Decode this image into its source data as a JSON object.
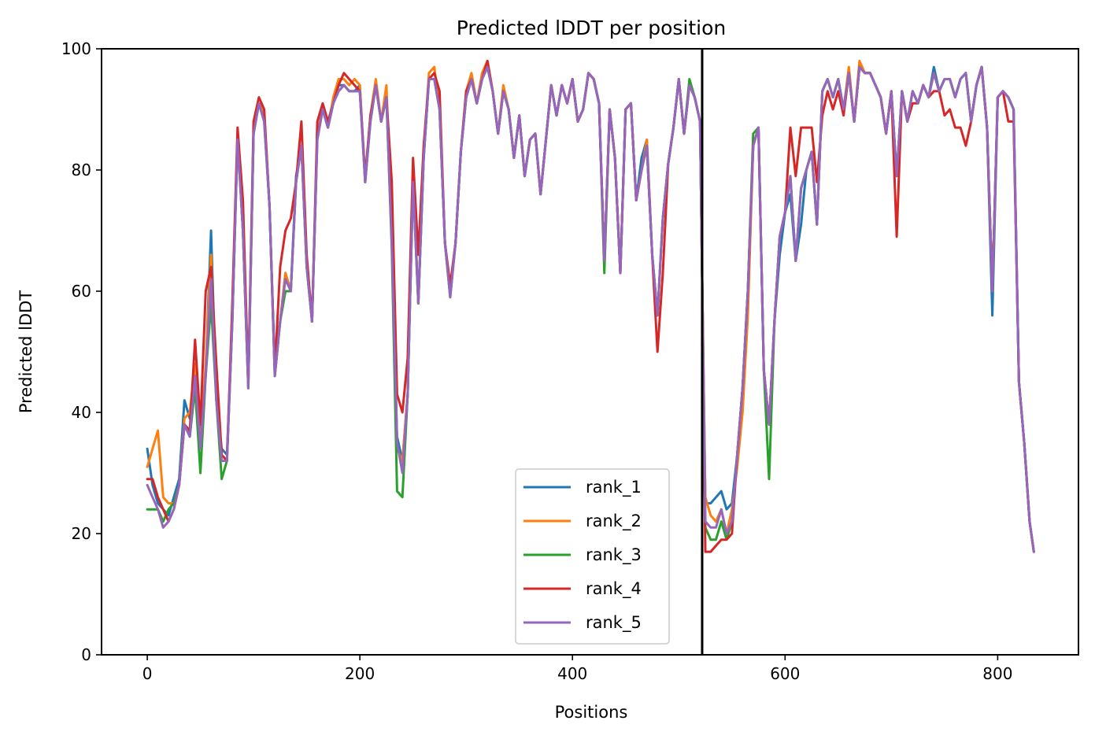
{
  "chart_data": {
    "type": "line",
    "title": "Predicted lDDT per position",
    "xlabel": "Positions",
    "ylabel": "Predicted lDDT",
    "xlim": [
      -43,
      876
    ],
    "ylim": [
      0,
      100
    ],
    "xticks": [
      0,
      200,
      400,
      600,
      800
    ],
    "yticks": [
      0,
      20,
      40,
      60,
      80,
      100
    ],
    "xtick_labels": [
      "0",
      "200",
      "400",
      "600",
      "800"
    ],
    "ytick_labels": [
      "0",
      "20",
      "40",
      "60",
      "80",
      "100"
    ],
    "grid": false,
    "legend_position": "lower center",
    "vline_x": 522,
    "x": [
      0,
      5,
      10,
      15,
      20,
      25,
      30,
      35,
      40,
      45,
      50,
      55,
      60,
      65,
      70,
      75,
      80,
      85,
      90,
      95,
      100,
      105,
      110,
      115,
      120,
      125,
      130,
      135,
      140,
      145,
      150,
      155,
      160,
      165,
      170,
      175,
      180,
      185,
      190,
      195,
      200,
      205,
      210,
      215,
      220,
      225,
      230,
      235,
      240,
      245,
      250,
      255,
      260,
      265,
      270,
      275,
      280,
      285,
      290,
      295,
      300,
      305,
      310,
      315,
      320,
      325,
      330,
      335,
      340,
      345,
      350,
      355,
      360,
      365,
      370,
      375,
      380,
      385,
      390,
      395,
      400,
      405,
      410,
      415,
      420,
      425,
      430,
      435,
      440,
      445,
      450,
      455,
      460,
      465,
      470,
      475,
      480,
      485,
      490,
      495,
      500,
      505,
      510,
      515,
      520,
      522,
      525,
      530,
      535,
      540,
      545,
      550,
      555,
      560,
      565,
      570,
      575,
      580,
      585,
      590,
      595,
      600,
      605,
      610,
      615,
      620,
      625,
      630,
      635,
      640,
      645,
      650,
      655,
      660,
      665,
      670,
      675,
      680,
      685,
      690,
      695,
      700,
      705,
      710,
      715,
      720,
      725,
      730,
      735,
      740,
      745,
      750,
      755,
      760,
      765,
      770,
      775,
      780,
      785,
      790,
      795,
      800,
      805,
      810,
      815,
      820,
      825,
      830,
      834
    ],
    "base": [
      28,
      26,
      24,
      21,
      22,
      24,
      28,
      38,
      36,
      46,
      34,
      46,
      62,
      42,
      32,
      32,
      55,
      85,
      70,
      44,
      86,
      91,
      88,
      74,
      46,
      55,
      62,
      60,
      78,
      84,
      64,
      55,
      85,
      90,
      87,
      91,
      93,
      94,
      93,
      93,
      93,
      78,
      88,
      94,
      88,
      92,
      68,
      35,
      30,
      43,
      78,
      58,
      82,
      95,
      95,
      90,
      68,
      59,
      68,
      83,
      92,
      95,
      91,
      95,
      97,
      93,
      86,
      93,
      90,
      82,
      89,
      79,
      85,
      86,
      76,
      85,
      94,
      89,
      94,
      91,
      95,
      88,
      90,
      96,
      95,
      91,
      65,
      90,
      82,
      63,
      90,
      91,
      75,
      80,
      84,
      66,
      56,
      72,
      81,
      87,
      95,
      86,
      94,
      92,
      88,
      62,
      22,
      21,
      21,
      24,
      20,
      22,
      33,
      44,
      60,
      84,
      87,
      47,
      38,
      55,
      69,
      73,
      79,
      65,
      77,
      80,
      83,
      71,
      93,
      95,
      92,
      95,
      90,
      96,
      88,
      97,
      96,
      96,
      94,
      92,
      86,
      93,
      79,
      93,
      88,
      93,
      91,
      94,
      92,
      96,
      93,
      95,
      95,
      92,
      95,
      96,
      88,
      94,
      97,
      87,
      60,
      92,
      93,
      92,
      90,
      45,
      35,
      22,
      17
    ],
    "series": [
      {
        "name": "rank_1",
        "color": "#1f77b4",
        "offsets": [
          6,
          2,
          1,
          3,
          1,
          2,
          1,
          4,
          3,
          0,
          2,
          1,
          8,
          0,
          2,
          1,
          0,
          1,
          0,
          1,
          0,
          0,
          1,
          0,
          1,
          0,
          1,
          0,
          1,
          0,
          1,
          0,
          1,
          0,
          0,
          0,
          1,
          0,
          0,
          0,
          1,
          0,
          1,
          0,
          0,
          0,
          1,
          1,
          2,
          0,
          1,
          0,
          0,
          0,
          0,
          0,
          0,
          1,
          0,
          0,
          0,
          0,
          0,
          0,
          0,
          0,
          0,
          0,
          0,
          0,
          0,
          0,
          0,
          0,
          0,
          0,
          0,
          0,
          0,
          0,
          0,
          0,
          0,
          0,
          0,
          0,
          0,
          0,
          0,
          0,
          0,
          0,
          0,
          2,
          1,
          0,
          0,
          0,
          0,
          0,
          0,
          0,
          0,
          0,
          0,
          0,
          3,
          4,
          5,
          3,
          4,
          3,
          0,
          0,
          0,
          0,
          0,
          0,
          0,
          0,
          -3,
          0,
          -3,
          0,
          -6,
          0,
          0,
          0,
          0,
          0,
          0,
          0,
          0,
          0,
          0,
          0,
          0,
          0,
          0,
          0,
          0,
          0,
          0,
          0,
          0,
          0,
          0,
          0,
          0,
          1,
          0,
          0,
          0,
          0,
          0,
          0,
          0,
          0,
          0,
          0,
          -4,
          0,
          0,
          0,
          0,
          0,
          0,
          0,
          0
        ]
      },
      {
        "name": "rank_2",
        "color": "#ff7f0e",
        "offsets": [
          3,
          8,
          13,
          5,
          3,
          1,
          0,
          1,
          4,
          2,
          0,
          2,
          4,
          0,
          1,
          0,
          0,
          1,
          0,
          0,
          0,
          0,
          1,
          0,
          0,
          0,
          1,
          0,
          0,
          0,
          0,
          0,
          1,
          0,
          0,
          1,
          2,
          1,
          1,
          2,
          1,
          0,
          1,
          1,
          0,
          2,
          1,
          -1,
          2,
          0,
          2,
          0,
          1,
          1,
          2,
          0,
          0,
          1,
          0,
          0,
          1,
          1,
          0,
          1,
          1,
          0,
          0,
          1,
          0,
          0,
          0,
          0,
          0,
          0,
          0,
          0,
          0,
          0,
          0,
          0,
          0,
          0,
          0,
          0,
          0,
          0,
          0,
          0,
          0,
          0,
          0,
          0,
          0,
          0,
          1,
          0,
          0,
          0,
          0,
          0,
          0,
          0,
          0,
          0,
          0,
          0,
          4,
          2,
          1,
          0,
          0,
          2,
          -2,
          -4,
          -4,
          0,
          0,
          0,
          0,
          0,
          0,
          0,
          0,
          0,
          0,
          0,
          0,
          0,
          0,
          0,
          0,
          0,
          0,
          1,
          0,
          1,
          0,
          0,
          0,
          0,
          0,
          0,
          0,
          0,
          0,
          0,
          0,
          0,
          0,
          0,
          0,
          0,
          0,
          0,
          0,
          0,
          0,
          0,
          0,
          0,
          0,
          0,
          0,
          0,
          0,
          0,
          0,
          0,
          0
        ]
      },
      {
        "name": "rank_3",
        "color": "#2ca02c",
        "offsets": [
          -4,
          -2,
          0,
          1,
          2,
          1,
          0,
          0,
          0,
          -2,
          -4,
          0,
          -4,
          0,
          -3,
          0,
          0,
          0,
          0,
          0,
          0,
          0,
          0,
          0,
          0,
          0,
          -2,
          0,
          0,
          0,
          0,
          0,
          0,
          0,
          0,
          0,
          0,
          0,
          0,
          0,
          0,
          0,
          0,
          0,
          0,
          0,
          -1,
          -8,
          -4,
          0,
          0,
          0,
          0,
          0,
          0,
          0,
          0,
          0,
          0,
          0,
          0,
          0,
          0,
          0,
          0,
          0,
          0,
          0,
          0,
          0,
          0,
          0,
          0,
          0,
          0,
          0,
          0,
          0,
          0,
          0,
          0,
          0,
          0,
          0,
          0,
          0,
          -2,
          0,
          0,
          0,
          0,
          0,
          0,
          0,
          0,
          0,
          0,
          0,
          0,
          0,
          0,
          0,
          1,
          0,
          0,
          0,
          -1,
          -2,
          -2,
          -2,
          -1,
          0,
          0,
          0,
          0,
          2,
          0,
          0,
          -9,
          0,
          0,
          0,
          0,
          0,
          0,
          0,
          0,
          0,
          0,
          0,
          0,
          0,
          0,
          0,
          0,
          0,
          0,
          0,
          0,
          0,
          0,
          0,
          0,
          0,
          0,
          0,
          0,
          0,
          0,
          0,
          0,
          0,
          0,
          0,
          0,
          0,
          0,
          0,
          0,
          0,
          0,
          0,
          0,
          0,
          0
        ]
      },
      {
        "name": "rank_4",
        "color": "#d62728",
        "offsets": [
          1,
          3,
          2,
          3,
          0,
          0,
          0,
          0,
          1,
          6,
          4,
          14,
          2,
          6,
          1,
          0,
          3,
          2,
          5,
          1,
          2,
          1,
          2,
          0,
          1,
          9,
          8,
          12,
          0,
          4,
          2,
          0,
          3,
          1,
          1,
          0,
          1,
          2,
          2,
          1,
          0,
          1,
          1,
          0,
          0,
          0,
          10,
          8,
          10,
          6,
          4,
          8,
          2,
          0,
          1,
          3,
          0,
          2,
          0,
          0,
          1,
          0,
          0,
          0,
          1,
          0,
          0,
          0,
          0,
          0,
          0,
          0,
          0,
          0,
          0,
          0,
          0,
          0,
          0,
          0,
          0,
          0,
          0,
          0,
          0,
          0,
          0,
          0,
          0,
          0,
          0,
          0,
          0,
          0,
          0,
          0,
          -6,
          -9,
          0,
          0,
          0,
          0,
          0,
          0,
          0,
          0,
          -5,
          -4,
          -3,
          -5,
          -1,
          -2,
          0,
          0,
          0,
          0,
          0,
          0,
          0,
          0,
          0,
          0,
          8,
          14,
          10,
          7,
          4,
          7,
          -4,
          -2,
          -2,
          -2,
          -1,
          0,
          0,
          0,
          0,
          0,
          0,
          0,
          0,
          0,
          -10,
          0,
          0,
          -2,
          0,
          0,
          0,
          -3,
          0,
          -6,
          -5,
          -5,
          -8,
          -12,
          0,
          0,
          0,
          0,
          0,
          0,
          0,
          -4,
          -2
        ]
      },
      {
        "name": "rank_5",
        "color": "#9467bd",
        "offsets": [
          0,
          0,
          0,
          0,
          0,
          0,
          0,
          0,
          0,
          0,
          0,
          0,
          0,
          0,
          0,
          0,
          0,
          0,
          0,
          0,
          0,
          0,
          0,
          0,
          0,
          0,
          0,
          0,
          0,
          0,
          0,
          0,
          0,
          0,
          0,
          0,
          0,
          0,
          0,
          0,
          0,
          0,
          0,
          0,
          0,
          0,
          0,
          0,
          0,
          0,
          0,
          0,
          0,
          0,
          0,
          0,
          0,
          0,
          0,
          0,
          0,
          0,
          0,
          0,
          0,
          0,
          0,
          0,
          0,
          0,
          0,
          0,
          0,
          0,
          0,
          0,
          0,
          0,
          0,
          0,
          0,
          0,
          0,
          0,
          0,
          0,
          0,
          0,
          0,
          0,
          0,
          0,
          0,
          0,
          0,
          0,
          0,
          0,
          0,
          0,
          0,
          0,
          0,
          0,
          0,
          0,
          0,
          0,
          0,
          0,
          0,
          0,
          0,
          0,
          0,
          0,
          0,
          0,
          0,
          0,
          0,
          0,
          0,
          0,
          0,
          0,
          0,
          0,
          0,
          0,
          0,
          0,
          0,
          0,
          0,
          0,
          0,
          0,
          0,
          0,
          0,
          0,
          0,
          0,
          0,
          0,
          0,
          0,
          0,
          0,
          0,
          0,
          0,
          0,
          0,
          0,
          0,
          0,
          0,
          0,
          0,
          0,
          0,
          0,
          0,
          0,
          0,
          0,
          0
        ]
      }
    ]
  }
}
